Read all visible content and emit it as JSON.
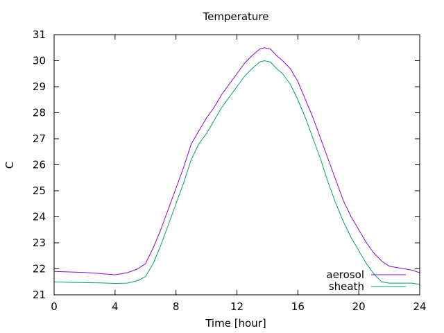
{
  "chart_data": {
    "type": "line",
    "title": "Temperature",
    "xlabel": "Time [hour]",
    "ylabel": "C",
    "xlim": [
      0,
      24
    ],
    "ylim": [
      21,
      31
    ],
    "xticks": [
      0,
      4,
      8,
      12,
      16,
      20,
      24
    ],
    "yticks": [
      21,
      22,
      23,
      24,
      25,
      26,
      27,
      28,
      29,
      30,
      31
    ],
    "grid": false,
    "legend_position": "bottom-right",
    "series": [
      {
        "name": "aerosol",
        "color": "#9400d3",
        "x": [
          0,
          1,
          2,
          3,
          4,
          4.8,
          5.5,
          6,
          6.5,
          7,
          7.5,
          8,
          8.5,
          9,
          9.5,
          10,
          10.5,
          11,
          11.5,
          12,
          12.5,
          13,
          13.5,
          13.8,
          14.2,
          14.6,
          15,
          15.5,
          16,
          16.5,
          17,
          17.5,
          18,
          18.5,
          19,
          19.5,
          20,
          20.5,
          21,
          21.5,
          22,
          22.5,
          23,
          23.5,
          24
        ],
        "y": [
          21.9,
          21.88,
          21.86,
          21.82,
          21.77,
          21.85,
          22.0,
          22.2,
          22.8,
          23.5,
          24.3,
          25.1,
          25.9,
          26.8,
          27.3,
          27.8,
          28.2,
          28.7,
          29.1,
          29.5,
          29.9,
          30.2,
          30.45,
          30.5,
          30.45,
          30.2,
          30.0,
          29.7,
          29.2,
          28.5,
          27.8,
          27.0,
          26.2,
          25.4,
          24.6,
          24.0,
          23.5,
          23.0,
          22.6,
          22.3,
          22.1,
          22.05,
          22.0,
          21.95,
          21.85
        ]
      },
      {
        "name": "sheath",
        "color": "#009e73",
        "x": [
          0,
          1,
          2,
          3,
          4,
          4.8,
          5.5,
          6,
          6.5,
          7,
          7.5,
          8,
          8.5,
          9,
          9.5,
          10,
          10.5,
          11,
          11.5,
          12,
          12.5,
          13,
          13.5,
          13.8,
          14.2,
          14.6,
          15,
          15.5,
          16,
          16.5,
          17,
          17.5,
          18,
          18.5,
          19,
          19.5,
          20,
          20.5,
          21,
          21.5,
          22,
          22.5,
          23,
          23.5,
          24
        ],
        "y": [
          21.5,
          21.48,
          21.47,
          21.46,
          21.44,
          21.45,
          21.55,
          21.7,
          22.2,
          22.9,
          23.7,
          24.5,
          25.3,
          26.2,
          26.8,
          27.2,
          27.7,
          28.2,
          28.6,
          29.0,
          29.4,
          29.7,
          29.95,
          30.0,
          29.95,
          29.7,
          29.5,
          29.1,
          28.5,
          27.8,
          27.0,
          26.2,
          25.3,
          24.5,
          23.8,
          23.2,
          22.7,
          22.2,
          21.8,
          21.5,
          21.45,
          21.45,
          21.45,
          21.45,
          21.4
        ]
      }
    ]
  }
}
